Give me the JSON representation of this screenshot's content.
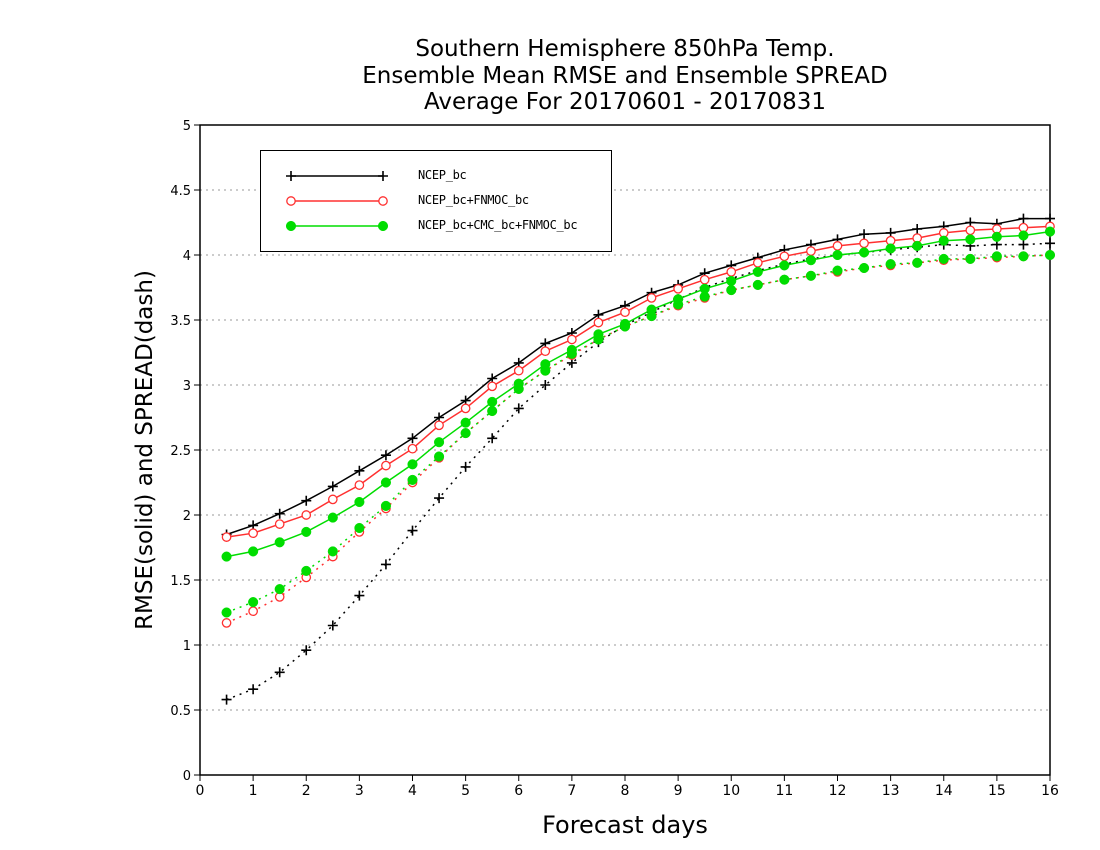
{
  "title_lines": [
    "Southern Hemisphere 850hPa Temp.",
    "Ensemble Mean RMSE and Ensemble SPREAD",
    "Average For 20170601 - 20170831"
  ],
  "colors": {
    "ncep": "#000000",
    "fnmoc": "#ff3030",
    "cmc": "#00dd00",
    "grid": "#999999"
  },
  "chart_data": {
    "type": "line",
    "title": "Southern Hemisphere 850hPa Temp. Ensemble Mean RMSE and Ensemble SPREAD Average For 20170601 - 20170831",
    "xlabel": "Forecast days",
    "ylabel": "RMSE(solid) and SPREAD(dash)",
    "xlim": [
      0,
      16
    ],
    "ylim": [
      0,
      5
    ],
    "xticks": [
      "0",
      "1",
      "2",
      "3",
      "4",
      "5",
      "6",
      "7",
      "8",
      "9",
      "10",
      "11",
      "12",
      "13",
      "14",
      "15",
      "16"
    ],
    "yticks": [
      "0",
      "0.5",
      "1",
      "1.5",
      "2",
      "2.5",
      "3",
      "3.5",
      "4",
      "4.5",
      "5"
    ],
    "grid": "horizontal dotted",
    "legend_position": "top-left",
    "x": [
      0.5,
      1,
      1.5,
      2,
      2.5,
      3,
      3.5,
      4,
      4.5,
      5,
      5.5,
      6,
      6.5,
      7,
      7.5,
      8,
      8.5,
      9,
      9.5,
      10,
      10.5,
      11,
      11.5,
      12,
      12.5,
      13,
      13.5,
      14,
      14.5,
      15,
      15.5,
      16
    ],
    "series": [
      {
        "name": "NCEP_bc",
        "metric": "RMSE",
        "style": "solid",
        "marker": "plus",
        "color_key": "ncep",
        "values": [
          1.85,
          1.92,
          2.01,
          2.11,
          2.22,
          2.34,
          2.46,
          2.59,
          2.75,
          2.88,
          3.05,
          3.17,
          3.32,
          3.4,
          3.54,
          3.61,
          3.71,
          3.77,
          3.86,
          3.92,
          3.98,
          4.04,
          4.08,
          4.12,
          4.16,
          4.17,
          4.2,
          4.22,
          4.25,
          4.24,
          4.28,
          4.28
        ]
      },
      {
        "name": "NCEP_bc+FNMOC_bc",
        "metric": "RMSE",
        "style": "solid",
        "marker": "open-circle",
        "color_key": "fnmoc",
        "values": [
          1.83,
          1.86,
          1.93,
          2.0,
          2.12,
          2.23,
          2.38,
          2.51,
          2.69,
          2.82,
          2.99,
          3.11,
          3.26,
          3.35,
          3.48,
          3.56,
          3.67,
          3.74,
          3.81,
          3.87,
          3.94,
          3.99,
          4.03,
          4.07,
          4.09,
          4.11,
          4.13,
          4.17,
          4.19,
          4.2,
          4.21,
          4.22
        ]
      },
      {
        "name": "NCEP_bc+CMC_bc+FNMOC_bc",
        "metric": "RMSE",
        "style": "solid",
        "marker": "filled-circle",
        "color_key": "cmc",
        "values": [
          1.68,
          1.72,
          1.79,
          1.87,
          1.98,
          2.1,
          2.25,
          2.39,
          2.56,
          2.71,
          2.87,
          3.01,
          3.16,
          3.27,
          3.39,
          3.47,
          3.58,
          3.66,
          3.74,
          3.8,
          3.87,
          3.92,
          3.96,
          4.0,
          4.02,
          4.05,
          4.07,
          4.11,
          4.12,
          4.14,
          4.15,
          4.18
        ]
      },
      {
        "name": "NCEP_bc",
        "metric": "SPREAD",
        "style": "dash",
        "marker": "plus",
        "color_key": "ncep",
        "values": [
          0.58,
          0.66,
          0.79,
          0.96,
          1.15,
          1.38,
          1.62,
          1.88,
          2.13,
          2.37,
          2.59,
          2.82,
          3.0,
          3.17,
          3.33,
          3.46,
          3.56,
          3.66,
          3.75,
          3.82,
          3.88,
          3.93,
          3.97,
          4.0,
          4.02,
          4.04,
          4.06,
          4.08,
          4.07,
          4.08,
          4.08,
          4.09
        ]
      },
      {
        "name": "NCEP_bc+FNMOC_bc",
        "metric": "SPREAD",
        "style": "dash",
        "marker": "open-circle",
        "color_key": "fnmoc",
        "values": [
          1.17,
          1.26,
          1.37,
          1.52,
          1.68,
          1.87,
          2.05,
          2.25,
          2.44,
          2.63,
          2.8,
          2.97,
          3.11,
          3.23,
          3.35,
          3.45,
          3.53,
          3.61,
          3.67,
          3.73,
          3.77,
          3.81,
          3.84,
          3.87,
          3.9,
          3.92,
          3.94,
          3.96,
          3.97,
          3.98,
          3.99,
          4.0
        ]
      },
      {
        "name": "NCEP_bc+CMC_bc+FNMOC_bc",
        "metric": "SPREAD",
        "style": "dash",
        "marker": "filled-circle",
        "color_key": "cmc",
        "values": [
          1.25,
          1.33,
          1.43,
          1.57,
          1.72,
          1.9,
          2.07,
          2.27,
          2.45,
          2.63,
          2.8,
          2.97,
          3.11,
          3.24,
          3.35,
          3.45,
          3.53,
          3.62,
          3.68,
          3.73,
          3.77,
          3.81,
          3.84,
          3.88,
          3.9,
          3.93,
          3.94,
          3.97,
          3.97,
          3.99,
          3.99,
          4.0
        ]
      }
    ]
  },
  "legend": {
    "items": [
      {
        "label": "NCEP_bc",
        "color_key": "ncep",
        "marker": "plus"
      },
      {
        "label": "NCEP_bc+FNMOC_bc",
        "color_key": "fnmoc",
        "marker": "open-circle"
      },
      {
        "label": "NCEP_bc+CMC_bc+FNMOC_bc",
        "color_key": "cmc",
        "marker": "filled-circle"
      }
    ]
  }
}
